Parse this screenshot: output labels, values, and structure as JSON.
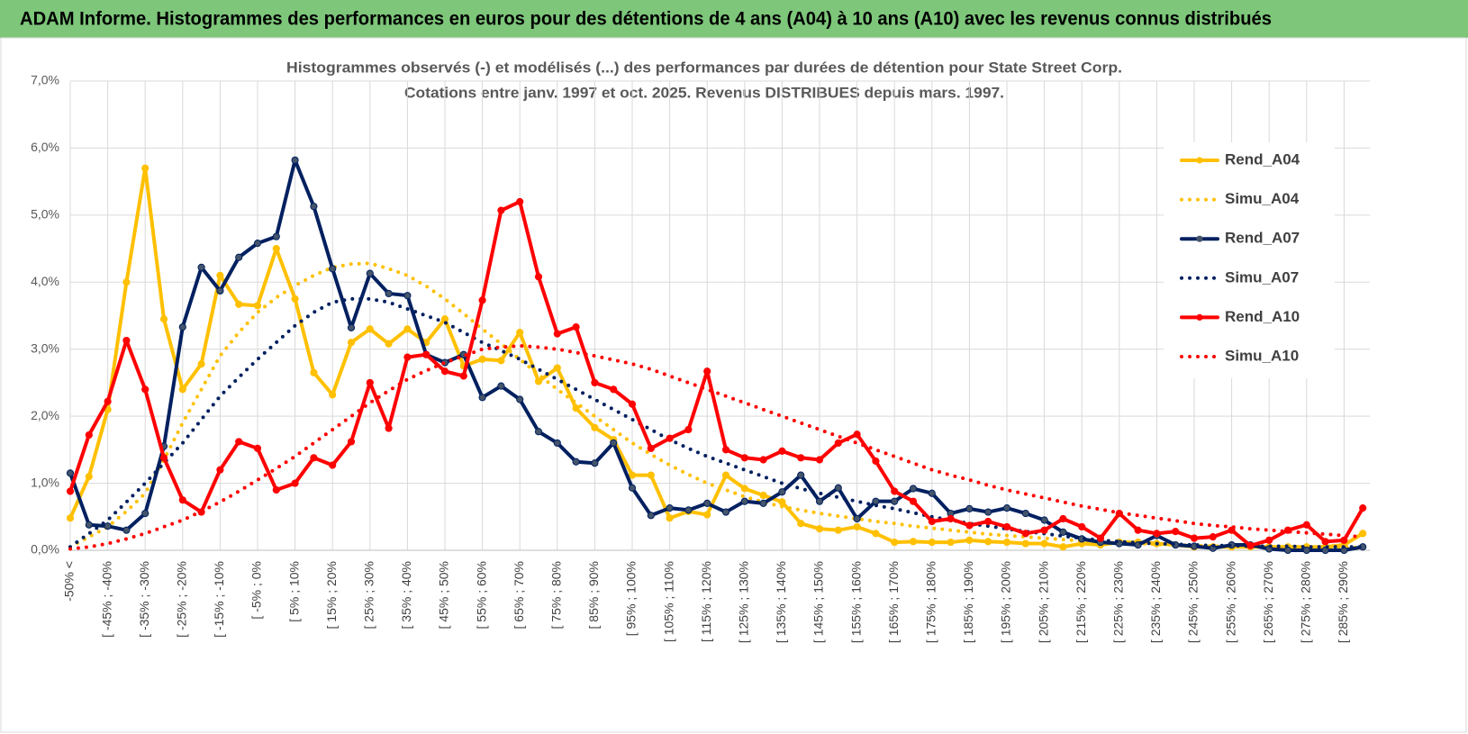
{
  "header": {
    "title": "ADAM Informe. Histogrammes des performances en euros pour des détentions de 4 ans (A04) à 10 ans (A10) avec les revenus connus distribués"
  },
  "chart_data": {
    "type": "line",
    "title": "Histogrammes observés (-) et modélisés (...) des performances par durées de détention pour State Street Corp.",
    "subtitle": "Cotations entre janv. 1997 et oct. 2025.  Revenus DISTRIBUES depuis mars. 1997.",
    "categories": [
      "-50% <",
      null,
      "[ -45% ; -40%",
      null,
      "[ -35% ; -30%",
      null,
      "[ -25% ; -20%",
      null,
      "[ -15% ; -10%",
      null,
      "[ -5% ; 0%",
      null,
      "[ 5% ; 10%",
      null,
      "[ 15% ; 20%",
      null,
      "[ 25% ; 30%",
      null,
      "[ 35% ; 40%",
      null,
      "[ 45% ; 50%",
      null,
      "[ 55% ; 60%",
      null,
      "[ 65% ; 70%",
      null,
      "[ 75% ; 80%",
      null,
      "[ 85% ; 90%",
      null,
      "[ 95% ; 100%",
      null,
      "[ 105% ; 110%",
      null,
      "[ 115% ; 120%",
      null,
      "[ 125% ; 130%",
      null,
      "[ 135% ; 140%",
      null,
      "[ 145% ; 150%",
      null,
      "[ 155% ; 160%",
      null,
      "[ 165% ; 170%",
      null,
      "[ 175% ; 180%",
      null,
      "[ 185% ; 190%",
      null,
      "[ 195% ; 200%",
      null,
      "[ 205% ; 210%",
      null,
      "[ 215% ; 220%",
      null,
      "[ 225% ; 230%",
      null,
      "[ 235% ; 240%",
      null,
      "[ 245% ; 250%",
      null,
      "[ 255% ; 260%",
      null,
      "[ 265% ; 270%",
      null,
      "[ 275% ; 280%",
      null,
      "[ 285% ; 290%",
      null
    ],
    "series": [
      {
        "name": "Rend_A04",
        "color": "#ffc000",
        "style": "solid",
        "markers": true,
        "values": [
          0.48,
          1.1,
          2.1,
          4.0,
          5.7,
          3.45,
          2.4,
          2.78,
          4.1,
          3.67,
          3.65,
          4.5,
          3.75,
          2.65,
          2.32,
          3.1,
          3.3,
          3.08,
          3.3,
          3.1,
          3.45,
          2.75,
          2.85,
          2.83,
          3.25,
          2.52,
          2.72,
          2.12,
          1.83,
          1.65,
          1.12,
          1.12,
          0.48,
          0.58,
          0.53,
          1.12,
          0.92,
          0.82,
          0.72,
          0.4,
          0.32,
          0.3,
          0.35,
          0.25,
          0.12,
          0.13,
          0.12,
          0.12,
          0.15,
          0.13,
          0.12,
          0.1,
          0.1,
          0.05,
          0.1,
          0.08,
          0.12,
          0.12,
          0.1,
          0.08,
          0.05,
          0.05,
          0.05,
          0.05,
          0.05,
          0.05,
          0.05,
          0.05,
          0.08,
          0.25
        ]
      },
      {
        "name": "Simu_A04",
        "color": "#ffc000",
        "style": "dotted",
        "markers": false,
        "values": [
          0.05,
          0.2,
          0.35,
          0.58,
          0.85,
          1.35,
          1.9,
          2.4,
          2.9,
          3.25,
          3.55,
          3.77,
          3.95,
          4.1,
          4.22,
          4.27,
          4.28,
          4.2,
          4.1,
          3.94,
          3.75,
          3.53,
          3.3,
          3.08,
          2.85,
          2.62,
          2.4,
          2.2,
          2.0,
          1.8,
          1.6,
          1.43,
          1.27,
          1.13,
          1.0,
          0.9,
          0.8,
          0.72,
          0.65,
          0.6,
          0.55,
          0.51,
          0.47,
          0.43,
          0.4,
          0.36,
          0.33,
          0.3,
          0.27,
          0.24,
          0.22,
          0.2,
          0.18,
          0.16,
          0.14,
          0.12,
          0.11,
          0.1,
          0.09,
          0.08,
          0.07,
          0.06,
          0.06,
          0.05,
          0.05,
          0.05,
          0.05,
          0.04,
          0.04,
          0.04
        ]
      },
      {
        "name": "Rend_A07",
        "color": "#002060",
        "style": "solid",
        "markers": true,
        "values": [
          1.15,
          0.38,
          0.36,
          0.3,
          0.55,
          1.55,
          3.33,
          4.22,
          3.87,
          4.37,
          4.58,
          4.68,
          5.82,
          5.13,
          4.2,
          3.32,
          4.13,
          3.83,
          3.8,
          2.92,
          2.8,
          2.92,
          2.28,
          2.45,
          2.25,
          1.77,
          1.6,
          1.32,
          1.3,
          1.6,
          0.93,
          0.52,
          0.63,
          0.6,
          0.7,
          0.57,
          0.73,
          0.7,
          0.87,
          1.12,
          0.73,
          0.93,
          0.47,
          0.73,
          0.73,
          0.92,
          0.85,
          0.55,
          0.62,
          0.57,
          0.63,
          0.55,
          0.45,
          0.27,
          0.17,
          0.12,
          0.1,
          0.08,
          0.22,
          0.08,
          0.06,
          0.03,
          0.08,
          0.08,
          0.02,
          0.0,
          0.0,
          0.0,
          0.0,
          0.05
        ]
      },
      {
        "name": "Simu_A07",
        "color": "#002060",
        "style": "dotted",
        "markers": false,
        "values": [
          0.05,
          0.25,
          0.45,
          0.72,
          1.0,
          1.3,
          1.6,
          1.95,
          2.3,
          2.58,
          2.85,
          3.1,
          3.35,
          3.55,
          3.7,
          3.75,
          3.75,
          3.7,
          3.6,
          3.5,
          3.4,
          3.25,
          3.1,
          2.98,
          2.85,
          2.7,
          2.55,
          2.4,
          2.25,
          2.1,
          1.95,
          1.8,
          1.65,
          1.52,
          1.4,
          1.3,
          1.2,
          1.1,
          1.0,
          0.92,
          0.85,
          0.79,
          0.73,
          0.67,
          0.62,
          0.56,
          0.5,
          0.45,
          0.4,
          0.36,
          0.32,
          0.28,
          0.25,
          0.21,
          0.18,
          0.15,
          0.13,
          0.11,
          0.1,
          0.09,
          0.08,
          0.07,
          0.07,
          0.06,
          0.06,
          0.06,
          0.05,
          0.05,
          0.05,
          0.05
        ]
      },
      {
        "name": "Rend_A10",
        "color": "#ff0000",
        "style": "solid",
        "markers": true,
        "values": [
          0.88,
          1.72,
          2.22,
          3.13,
          2.4,
          1.38,
          0.75,
          0.57,
          1.2,
          1.62,
          1.52,
          0.9,
          1.0,
          1.38,
          1.27,
          1.62,
          2.5,
          1.82,
          2.88,
          2.92,
          2.67,
          2.6,
          3.73,
          5.07,
          5.2,
          4.08,
          3.23,
          3.33,
          2.5,
          2.4,
          2.18,
          1.52,
          1.67,
          1.8,
          2.67,
          1.5,
          1.38,
          1.35,
          1.48,
          1.38,
          1.35,
          1.6,
          1.73,
          1.33,
          0.88,
          0.73,
          0.43,
          0.47,
          0.37,
          0.43,
          0.35,
          0.25,
          0.3,
          0.47,
          0.35,
          0.18,
          0.55,
          0.3,
          0.25,
          0.28,
          0.18,
          0.2,
          0.3,
          0.07,
          0.15,
          0.3,
          0.38,
          0.13,
          0.15,
          0.63
        ]
      },
      {
        "name": "Simu_A10",
        "color": "#ff0000",
        "style": "dotted",
        "markers": false,
        "values": [
          0.02,
          0.05,
          0.1,
          0.17,
          0.25,
          0.35,
          0.45,
          0.58,
          0.72,
          0.88,
          1.05,
          1.22,
          1.4,
          1.6,
          1.8,
          2.0,
          2.2,
          2.38,
          2.55,
          2.68,
          2.8,
          2.9,
          3.0,
          3.03,
          3.05,
          3.03,
          3.0,
          2.95,
          2.9,
          2.84,
          2.78,
          2.7,
          2.6,
          2.5,
          2.4,
          2.3,
          2.2,
          2.1,
          2.0,
          1.9,
          1.8,
          1.7,
          1.6,
          1.5,
          1.4,
          1.3,
          1.2,
          1.12,
          1.05,
          0.97,
          0.9,
          0.84,
          0.78,
          0.72,
          0.66,
          0.61,
          0.56,
          0.52,
          0.48,
          0.44,
          0.4,
          0.37,
          0.35,
          0.32,
          0.3,
          0.28,
          0.26,
          0.24,
          0.22,
          0.2
        ]
      }
    ],
    "ylim": [
      0,
      7
    ],
    "yticks": [
      {
        "value": 0,
        "label": "0,0%"
      },
      {
        "value": 1,
        "label": "1,0%"
      },
      {
        "value": 2,
        "label": "2,0%"
      },
      {
        "value": 3,
        "label": "3,0%"
      },
      {
        "value": 4,
        "label": "4,0%"
      },
      {
        "value": 5,
        "label": "5,0%"
      },
      {
        "value": 6,
        "label": "6,0%"
      },
      {
        "value": 7,
        "label": "7,0%"
      }
    ],
    "grid": true,
    "legend": "right"
  }
}
